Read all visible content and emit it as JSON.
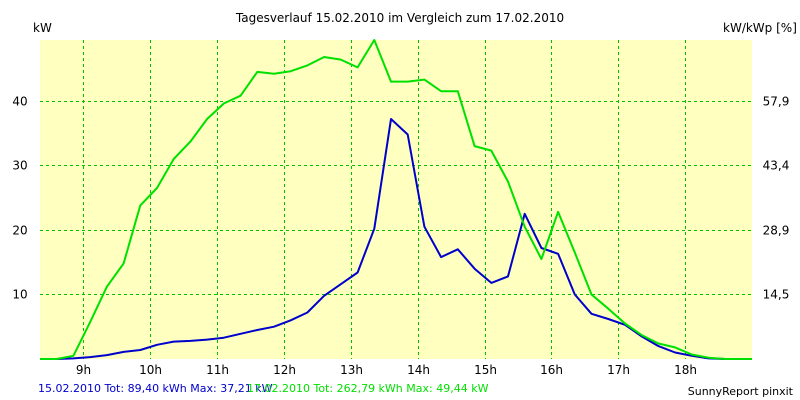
{
  "chart_data": {
    "type": "line",
    "title": "Tagesverlauf 15.02.2010 im Vergleich zum 17.02.2010",
    "ylabel_left": "kW",
    "ylabel_right": "kW/kWp [%]",
    "x_ticks": [
      "9h",
      "10h",
      "11h",
      "12h",
      "13h",
      "14h",
      "15h",
      "16h",
      "17h",
      "18h"
    ],
    "x_tick_hours": [
      9,
      10,
      11,
      12,
      13,
      14,
      15,
      16,
      17,
      18
    ],
    "xlim": [
      8.35,
      19.0
    ],
    "y_ticks_left": [
      "10",
      "20",
      "30",
      "40"
    ],
    "y_tick_values_left": [
      10,
      20,
      30,
      40
    ],
    "y_ticks_right": [
      "14,5",
      "28,9",
      "43,4",
      "57,9"
    ],
    "y_tick_values_right": [
      10,
      20,
      30,
      40
    ],
    "ylim": [
      0,
      49.44
    ],
    "grid": true,
    "colors": {
      "plot_background": "#ffffc0",
      "grid": "#00c000",
      "series1": "#0000cc",
      "series2": "#00e000",
      "footer_credit": "#000000"
    },
    "series": [
      {
        "name": "15.02.2010",
        "x": [
          8.35,
          8.6,
          8.85,
          9.1,
          9.35,
          9.6,
          9.85,
          10.1,
          10.35,
          10.6,
          10.85,
          11.1,
          11.35,
          11.6,
          11.85,
          12.1,
          12.35,
          12.6,
          12.85,
          13.1,
          13.35,
          13.6,
          13.85,
          14.1,
          14.35,
          14.6,
          14.85,
          15.1,
          15.35,
          15.6,
          15.85,
          16.1,
          16.35,
          16.6,
          16.85,
          17.1,
          17.35,
          17.6,
          17.85,
          18.1,
          18.35,
          18.6,
          18.85,
          19.0
        ],
        "y": [
          0,
          0,
          0.1,
          0.3,
          0.6,
          1.1,
          1.4,
          2.2,
          2.7,
          2.8,
          3.0,
          3.3,
          3.9,
          4.5,
          5.0,
          6.0,
          7.2,
          9.8,
          11.6,
          13.4,
          20.2,
          37.2,
          34.8,
          20.5,
          15.8,
          17.0,
          14.0,
          11.8,
          12.8,
          22.5,
          17.2,
          16.3,
          10.0,
          7.0,
          6.2,
          5.3,
          3.5,
          2.0,
          1.0,
          0.5,
          0.1,
          0,
          0,
          0
        ]
      },
      {
        "name": "17.02.2010",
        "x": [
          8.35,
          8.6,
          8.85,
          9.1,
          9.35,
          9.6,
          9.85,
          10.1,
          10.35,
          10.6,
          10.85,
          11.1,
          11.35,
          11.6,
          11.85,
          12.1,
          12.35,
          12.6,
          12.85,
          13.1,
          13.35,
          13.6,
          13.85,
          14.1,
          14.35,
          14.6,
          14.85,
          15.1,
          15.35,
          15.6,
          15.85,
          16.1,
          16.35,
          16.6,
          16.85,
          17.1,
          17.35,
          17.6,
          17.85,
          18.1,
          18.35,
          18.6,
          18.85,
          19.0
        ],
        "y": [
          0,
          0,
          0.5,
          5.7,
          11.2,
          14.8,
          23.8,
          26.5,
          31.0,
          33.7,
          37.2,
          39.6,
          40.8,
          44.5,
          44.2,
          44.6,
          45.5,
          46.8,
          46.4,
          45.2,
          49.44,
          43.0,
          43.0,
          43.3,
          41.5,
          41.5,
          33.0,
          32.3,
          27.5,
          20.5,
          15.5,
          22.8,
          16.5,
          10.0,
          7.8,
          5.5,
          3.7,
          2.4,
          1.8,
          0.7,
          0.2,
          0,
          0,
          0
        ]
      }
    ]
  },
  "footer": {
    "series1_summary": "15.02.2010 Tot: 89,40 kWh Max: 37,21 kW",
    "series2_summary": "17.02.2010 Tot: 262,79 kWh Max: 49,44 kW",
    "credit": "SunnyReport pinxit"
  }
}
